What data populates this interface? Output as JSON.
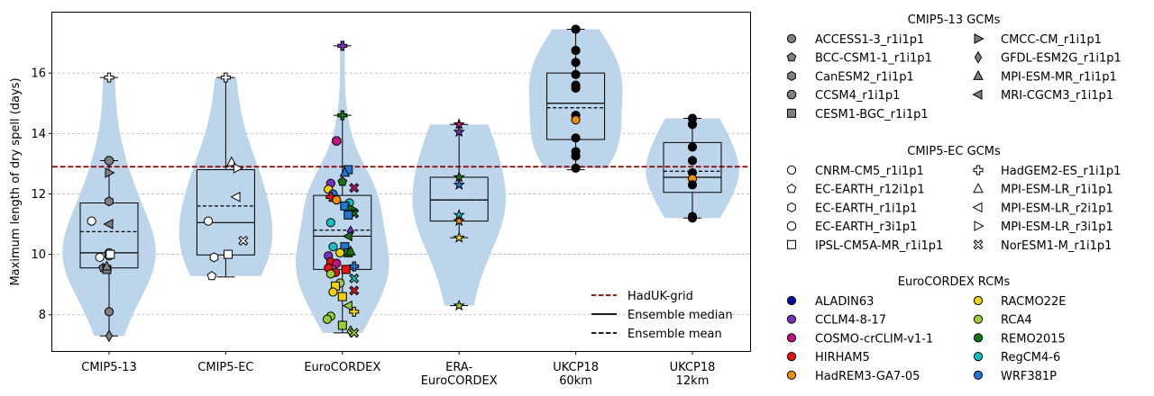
{
  "chart_data": {
    "type": "violin-box-strip",
    "ylabel": "Maximum length of dry spell (days)",
    "ylim": [
      6.8,
      18.0
    ],
    "yticks": [
      8,
      10,
      12,
      14,
      16
    ],
    "grid": "horizontal dashed",
    "reference_line": {
      "value": 12.9,
      "color": "#8b0000"
    },
    "categories": [
      {
        "label": [
          "CMIP5-13"
        ],
        "stats": {
          "min": 7.3,
          "q1": 9.55,
          "median": 10.05,
          "mean": 10.75,
          "q3": 11.7,
          "max": 13.1
        },
        "outliers": [
          15.85
        ]
      },
      {
        "label": [
          "CMIP5-EC"
        ],
        "stats": {
          "min": 9.25,
          "q1": 9.98,
          "median": 11.05,
          "mean": 11.6,
          "q3": 12.8,
          "max": 15.85
        },
        "outliers": []
      },
      {
        "label": [
          "EuroCORDEX"
        ],
        "stats": {
          "min": 7.4,
          "q1": 9.5,
          "median": 10.6,
          "mean": 10.8,
          "q3": 11.95,
          "max": 14.6
        },
        "outliers": [
          16.9
        ]
      },
      {
        "label": [
          "ERA-",
          "EuroCORDEX"
        ],
        "stats": {
          "min": 10.55,
          "q1": 11.1,
          "median": 11.8,
          "mean": 11.8,
          "q3": 12.55,
          "max": 14.3
        },
        "outliers": [
          8.3
        ]
      },
      {
        "label": [
          "UKCP18",
          "60km"
        ],
        "stats": {
          "min": 12.8,
          "q1": 13.8,
          "median": 15.0,
          "mean": 14.85,
          "q3": 16.0,
          "max": 17.45
        },
        "outliers": []
      },
      {
        "label": [
          "UKCP18",
          "12km"
        ],
        "stats": {
          "min": 11.2,
          "q1": 12.05,
          "median": 12.55,
          "mean": 12.75,
          "q3": 13.7,
          "max": 14.5
        },
        "outliers": []
      }
    ],
    "points": [
      {
        "g": 0,
        "m": "o",
        "c": "#808080",
        "x": 0.0,
        "y": 9.95
      },
      {
        "g": 0,
        "m": "p",
        "c": "#808080",
        "x": -0.05,
        "y": 9.55
      },
      {
        "g": 0,
        "m": "h",
        "c": "#808080",
        "x": 0.0,
        "y": 11.75
      },
      {
        "g": 0,
        "m": "8",
        "c": "#808080",
        "x": 0.0,
        "y": 13.1
      },
      {
        "g": 0,
        "m": "s",
        "c": "#808080",
        "x": -0.02,
        "y": 9.5
      },
      {
        "g": 0,
        "m": ">",
        "c": "#808080",
        "x": 0.0,
        "y": 12.7
      },
      {
        "g": 0,
        "m": "d",
        "c": "#808080",
        "x": 0.0,
        "y": 7.3
      },
      {
        "g": 0,
        "m": "^",
        "c": "#808080",
        "x": -0.02,
        "y": 9.6
      },
      {
        "g": 0,
        "m": "<",
        "c": "#808080",
        "x": 0.0,
        "y": 11.0
      },
      {
        "g": 0,
        "m": "o",
        "c": "#808080",
        "x": 0.0,
        "y": 8.1
      },
      {
        "g": 0,
        "m": "o",
        "c": "#808080",
        "x": 0.0,
        "y": 10.05
      },
      {
        "g": 0,
        "m": "o",
        "c": "#ffffff",
        "x": -0.15,
        "y": 11.1
      },
      {
        "g": 0,
        "m": "o",
        "c": "#ffffff",
        "x": -0.08,
        "y": 9.9
      },
      {
        "g": 0,
        "m": "s",
        "c": "#ffffff",
        "x": 0.01,
        "y": 10.0
      },
      {
        "g": 0,
        "m": "P",
        "c": "#ffffff",
        "x": 0.0,
        "y": 15.85
      },
      {
        "g": 1,
        "m": "o",
        "c": "#ffffff",
        "x": -0.15,
        "y": 11.1
      },
      {
        "g": 1,
        "m": "p",
        "c": "#ffffff",
        "x": -0.12,
        "y": 9.28
      },
      {
        "g": 1,
        "m": "h",
        "c": "#ffffff",
        "x": -0.1,
        "y": 9.9
      },
      {
        "g": 1,
        "m": "s",
        "c": "#ffffff",
        "x": 0.02,
        "y": 10.0
      },
      {
        "g": 1,
        "m": "P",
        "c": "#ffffff",
        "x": 0.0,
        "y": 15.85
      },
      {
        "g": 1,
        "m": "^",
        "c": "#ffffff",
        "x": 0.05,
        "y": 13.05
      },
      {
        "g": 1,
        "m": "<",
        "c": "#ffffff",
        "x": 0.09,
        "y": 11.9
      },
      {
        "g": 1,
        "m": ">",
        "c": "#ffffff",
        "x": 0.1,
        "y": 12.85
      },
      {
        "g": 1,
        "m": "X",
        "c": "#ffffff",
        "x": 0.15,
        "y": 10.45
      },
      {
        "g": 2,
        "m": "P",
        "c": "#7b2fbe",
        "x": 0.0,
        "y": 16.9
      },
      {
        "g": 2,
        "m": "P",
        "c": "#127612",
        "x": 0.0,
        "y": 14.6
      },
      {
        "g": 2,
        "m": "8",
        "c": "#c0117f",
        "x": -0.05,
        "y": 13.75
      },
      {
        "g": 2,
        "m": "s",
        "c": "#1f77d4",
        "x": 0.05,
        "y": 12.8
      },
      {
        "g": 2,
        "m": "^",
        "c": "#1f77d4",
        "x": 0.02,
        "y": 12.7
      },
      {
        "g": 2,
        "m": "p",
        "c": "#127612",
        "x": 0.0,
        "y": 12.4
      },
      {
        "g": 2,
        "m": "o",
        "c": "#7b2fbe",
        "x": -0.1,
        "y": 12.35
      },
      {
        "g": 2,
        "m": "X",
        "c": "#c0117f",
        "x": 0.1,
        "y": 12.2
      },
      {
        "g": 2,
        "m": "o",
        "c": "#f2d00c",
        "x": -0.12,
        "y": 12.15
      },
      {
        "g": 2,
        "m": "o",
        "c": "#1f77d4",
        "x": -0.08,
        "y": 12.0
      },
      {
        "g": 2,
        "m": "P",
        "c": "#ed1212",
        "x": -0.1,
        "y": 11.9
      },
      {
        "g": 2,
        "m": "o",
        "c": "#f28c0c",
        "x": -0.05,
        "y": 11.8
      },
      {
        "g": 2,
        "m": "o",
        "c": "#12c0c0",
        "x": 0.06,
        "y": 11.7
      },
      {
        "g": 2,
        "m": "s",
        "c": "#1f77d4",
        "x": 0.02,
        "y": 11.6
      },
      {
        "g": 2,
        "m": ">",
        "c": "#127612",
        "x": 0.08,
        "y": 11.5
      },
      {
        "g": 2,
        "m": "X",
        "c": "#127612",
        "x": 0.1,
        "y": 11.35
      },
      {
        "g": 2,
        "m": "s",
        "c": "#1f77d4",
        "x": 0.05,
        "y": 11.3
      },
      {
        "g": 2,
        "m": "o",
        "c": "#12c0c0",
        "x": -0.1,
        "y": 11.05
      },
      {
        "g": 2,
        "m": "d",
        "c": "#7b2fbe",
        "x": 0.07,
        "y": 10.75
      },
      {
        "g": 2,
        "m": "<",
        "c": "#127612",
        "x": 0.05,
        "y": 10.6
      },
      {
        "g": 2,
        "m": "o",
        "c": "#12c0c0",
        "x": -0.08,
        "y": 10.25
      },
      {
        "g": 2,
        "m": "s",
        "c": "#1f77d4",
        "x": 0.02,
        "y": 10.25
      },
      {
        "g": 2,
        "m": "o",
        "c": "#f2d00c",
        "x": -0.02,
        "y": 10.05
      },
      {
        "g": 2,
        "m": "s",
        "c": "#127612",
        "x": 0.05,
        "y": 10.05
      },
      {
        "g": 2,
        "m": "^",
        "c": "#127612",
        "x": 0.07,
        "y": 10.1
      },
      {
        "g": 2,
        "m": "o",
        "c": "#7b2fbe",
        "x": -0.12,
        "y": 9.95
      },
      {
        "g": 2,
        "m": "o",
        "c": "#ed1212",
        "x": -0.1,
        "y": 9.75
      },
      {
        "g": 2,
        "m": "o",
        "c": "#c0117f",
        "x": -0.05,
        "y": 9.7
      },
      {
        "g": 2,
        "m": "P",
        "c": "#1f77d4",
        "x": 0.1,
        "y": 9.6
      },
      {
        "g": 2,
        "m": "o",
        "c": "#ed1212",
        "x": -0.12,
        "y": 9.55
      },
      {
        "g": 2,
        "m": "s",
        "c": "#ed1212",
        "x": 0.03,
        "y": 9.5
      },
      {
        "g": 2,
        "m": "o",
        "c": "#ed1212",
        "x": -0.06,
        "y": 9.4
      },
      {
        "g": 2,
        "m": "o",
        "c": "#9acd32",
        "x": -0.1,
        "y": 9.35
      },
      {
        "g": 2,
        "m": "X",
        "c": "#12c0c0",
        "x": 0.1,
        "y": 9.2
      },
      {
        "g": 2,
        "m": "o",
        "c": "#9acd32",
        "x": -0.02,
        "y": 9.05
      },
      {
        "g": 2,
        "m": "s",
        "c": "#f2d00c",
        "x": -0.06,
        "y": 8.95
      },
      {
        "g": 2,
        "m": "X",
        "c": "#ed1212",
        "x": 0.1,
        "y": 8.8
      },
      {
        "g": 2,
        "m": "o",
        "c": "#f2d00c",
        "x": -0.08,
        "y": 8.75
      },
      {
        "g": 2,
        "m": "s",
        "c": "#f2d00c",
        "x": 0.0,
        "y": 8.6
      },
      {
        "g": 2,
        "m": "<",
        "c": "#9acd32",
        "x": 0.05,
        "y": 8.3
      },
      {
        "g": 2,
        "m": "P",
        "c": "#f2d00c",
        "x": 0.1,
        "y": 8.1
      },
      {
        "g": 2,
        "m": "o",
        "c": "#9acd32",
        "x": -0.1,
        "y": 7.95
      },
      {
        "g": 2,
        "m": "o",
        "c": "#9acd32",
        "x": -0.13,
        "y": 7.85
      },
      {
        "g": 2,
        "m": "s",
        "c": "#9acd32",
        "x": 0.0,
        "y": 7.65
      },
      {
        "g": 2,
        "m": "d",
        "c": "#9acd32",
        "x": 0.07,
        "y": 7.45
      },
      {
        "g": 2,
        "m": "X",
        "c": "#9acd32",
        "x": 0.1,
        "y": 7.4
      },
      {
        "g": 3,
        "m": "*",
        "c": "#c0117f",
        "x": 0.0,
        "y": 14.3
      },
      {
        "g": 3,
        "m": "*",
        "c": "#7b2fbe",
        "x": 0.0,
        "y": 14.05
      },
      {
        "g": 3,
        "m": "*",
        "c": "#127612",
        "x": 0.0,
        "y": 12.55
      },
      {
        "g": 3,
        "m": "*",
        "c": "#1f77d4",
        "x": 0.0,
        "y": 12.3
      },
      {
        "g": 3,
        "m": "*",
        "c": "#12c0c0",
        "x": 0.0,
        "y": 11.3
      },
      {
        "g": 3,
        "m": "*",
        "c": "#f28c0c",
        "x": 0.0,
        "y": 11.1
      },
      {
        "g": 3,
        "m": "*",
        "c": "#f2d00c",
        "x": 0.0,
        "y": 10.55
      },
      {
        "g": 3,
        "m": "*",
        "c": "#9acd32",
        "x": 0.0,
        "y": 8.3
      },
      {
        "g": 4,
        "m": "o",
        "c": "#000000",
        "x": 0.0,
        "y": 17.45
      },
      {
        "g": 4,
        "m": "o",
        "c": "#000000",
        "x": 0.0,
        "y": 16.75
      },
      {
        "g": 4,
        "m": "o",
        "c": "#000000",
        "x": 0.0,
        "y": 16.35
      },
      {
        "g": 4,
        "m": "o",
        "c": "#000000",
        "x": 0.0,
        "y": 15.95
      },
      {
        "g": 4,
        "m": "o",
        "c": "#000000",
        "x": 0.0,
        "y": 15.6
      },
      {
        "g": 4,
        "m": "o",
        "c": "#000000",
        "x": 0.0,
        "y": 15.5
      },
      {
        "g": 4,
        "m": "o",
        "c": "#000000",
        "x": 0.0,
        "y": 14.6
      },
      {
        "g": 4,
        "m": "o",
        "c": "#f28c0c",
        "x": 0.0,
        "y": 14.45
      },
      {
        "g": 4,
        "m": "o",
        "c": "#000000",
        "x": 0.0,
        "y": 13.85
      },
      {
        "g": 4,
        "m": "o",
        "c": "#000000",
        "x": 0.0,
        "y": 13.4
      },
      {
        "g": 4,
        "m": "o",
        "c": "#000000",
        "x": 0.0,
        "y": 13.25
      },
      {
        "g": 4,
        "m": "o",
        "c": "#000000",
        "x": 0.0,
        "y": 12.85
      },
      {
        "g": 5,
        "m": "o",
        "c": "#000000",
        "x": 0.0,
        "y": 14.5
      },
      {
        "g": 5,
        "m": "o",
        "c": "#000000",
        "x": 0.0,
        "y": 14.3
      },
      {
        "g": 5,
        "m": "o",
        "c": "#000000",
        "x": 0.0,
        "y": 13.55
      },
      {
        "g": 5,
        "m": "o",
        "c": "#000000",
        "x": 0.0,
        "y": 13.1
      },
      {
        "g": 5,
        "m": "o",
        "c": "#000000",
        "x": 0.0,
        "y": 12.7
      },
      {
        "g": 5,
        "m": "o",
        "c": "#f28c0c",
        "x": 0.0,
        "y": 12.5
      },
      {
        "g": 5,
        "m": "o",
        "c": "#000000",
        "x": 0.0,
        "y": 12.3
      },
      {
        "g": 5,
        "m": "o",
        "c": "#000000",
        "x": 0.0,
        "y": 11.25
      },
      {
        "g": 5,
        "m": "o",
        "c": "#000000",
        "x": 0.0,
        "y": 11.2
      }
    ],
    "inner_legend": [
      {
        "label": "HadUK-grid",
        "style": "dashed",
        "color": "#8b0000"
      },
      {
        "label": "Ensemble median",
        "style": "solid",
        "color": "#000000"
      },
      {
        "label": "Ensemble mean",
        "style": "dashed",
        "color": "#000000"
      }
    ],
    "legend_groups": [
      {
        "title": "CMIP5-13 GCMs",
        "items": [
          {
            "label": "ACCESS1-3_r1i1p1",
            "m": "o",
            "c": "#808080"
          },
          {
            "label": "BCC-CSM1-1_r1i1p1",
            "m": "p",
            "c": "#808080"
          },
          {
            "label": "CanESM2_r1i1p1",
            "m": "h",
            "c": "#808080"
          },
          {
            "label": "CCSM4_r1i1p1",
            "m": "8",
            "c": "#808080"
          },
          {
            "label": "CESM1-BGC_r1i1p1",
            "m": "s",
            "c": "#808080"
          },
          {
            "label": "CMCC-CM_r1i1p1",
            "m": ">",
            "c": "#808080"
          },
          {
            "label": "GFDL-ESM2G_r1i1p1",
            "m": "d",
            "c": "#808080"
          },
          {
            "label": "MPI-ESM-MR_r1i1p1",
            "m": "^",
            "c": "#808080"
          },
          {
            "label": "MRI-CGCM3_r1i1p1",
            "m": "<",
            "c": "#808080"
          }
        ]
      },
      {
        "title": "CMIP5-EC GCMs",
        "items": [
          {
            "label": "CNRM-CM5_r1i1p1",
            "m": "o",
            "c": "#ffffff"
          },
          {
            "label": "EC-EARTH_r12i1p1",
            "m": "p",
            "c": "#ffffff"
          },
          {
            "label": "EC-EARTH_r1i1p1",
            "m": "h",
            "c": "#ffffff"
          },
          {
            "label": "EC-EARTH_r3i1p1",
            "m": "8",
            "c": "#ffffff"
          },
          {
            "label": "IPSL-CM5A-MR_r1i1p1",
            "m": "s",
            "c": "#ffffff"
          },
          {
            "label": "HadGEM2-ES_r1i1p1",
            "m": "P",
            "c": "#ffffff"
          },
          {
            "label": "MPI-ESM-LR_r1i1p1",
            "m": "^",
            "c": "#ffffff"
          },
          {
            "label": "MPI-ESM-LR_r2i1p1",
            "m": "<",
            "c": "#ffffff"
          },
          {
            "label": "MPI-ESM-LR_r3i1p1",
            "m": ">",
            "c": "#ffffff"
          },
          {
            "label": "NorESM1-M_r1i1p1",
            "m": "X",
            "c": "#ffffff"
          }
        ]
      },
      {
        "title": "EuroCORDEX RCMs",
        "items": [
          {
            "label": "ALADIN63",
            "m": "o",
            "c": "#0000a8"
          },
          {
            "label": "CCLM4-8-17",
            "m": "o",
            "c": "#7b2fbe"
          },
          {
            "label": "COSMO-crCLIM-v1-1",
            "m": "o",
            "c": "#c0117f"
          },
          {
            "label": "HIRHAM5",
            "m": "o",
            "c": "#ed1212"
          },
          {
            "label": "HadREM3-GA7-05",
            "m": "o",
            "c": "#f28c0c"
          },
          {
            "label": "RACMO22E",
            "m": "o",
            "c": "#f2d00c"
          },
          {
            "label": "RCA4",
            "m": "o",
            "c": "#9acd32"
          },
          {
            "label": "REMO2015",
            "m": "o",
            "c": "#127612"
          },
          {
            "label": "RegCM4-6",
            "m": "o",
            "c": "#12c0c0"
          },
          {
            "label": "WRF381P",
            "m": "o",
            "c": "#1f77d4"
          }
        ]
      }
    ]
  }
}
